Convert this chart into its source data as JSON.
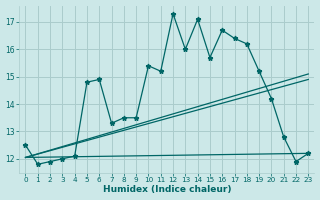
{
  "xlabel": "Humidex (Indice chaleur)",
  "bg_color": "#cce8e8",
  "grid_color": "#aacccc",
  "line_color": "#006666",
  "xlim": [
    -0.5,
    23.5
  ],
  "ylim": [
    11.5,
    17.6
  ],
  "xticks": [
    0,
    1,
    2,
    3,
    4,
    5,
    6,
    7,
    8,
    9,
    10,
    11,
    12,
    13,
    14,
    15,
    16,
    17,
    18,
    19,
    20,
    21,
    22,
    23
  ],
  "yticks": [
    12,
    13,
    14,
    15,
    16,
    17
  ],
  "curve1_x": [
    0,
    1,
    2,
    3,
    4,
    5,
    6,
    7,
    8,
    9,
    10,
    11,
    12,
    13,
    14,
    15,
    16,
    17,
    18,
    19,
    20,
    21,
    22,
    23
  ],
  "curve1_y": [
    12.5,
    11.8,
    11.9,
    12.0,
    12.1,
    14.8,
    14.9,
    13.3,
    13.5,
    13.5,
    15.4,
    15.2,
    17.3,
    16.0,
    17.1,
    15.7,
    16.7,
    16.4,
    16.2,
    15.2,
    14.2,
    12.8,
    11.9,
    12.2
  ],
  "line1_x": [
    0,
    23
  ],
  "line1_y": [
    12.05,
    12.2
  ],
  "line2_x": [
    0,
    23
  ],
  "line2_y": [
    12.05,
    14.9
  ],
  "line3_x": [
    0,
    23
  ],
  "line3_y": [
    12.05,
    15.1
  ]
}
